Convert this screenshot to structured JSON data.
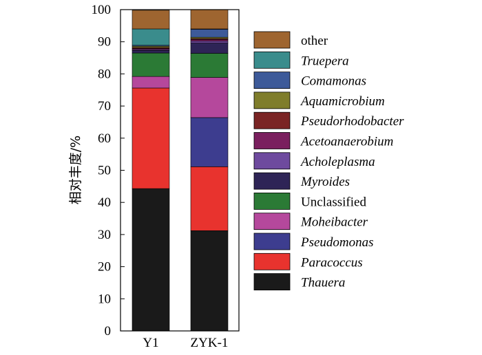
{
  "chart_data": {
    "type": "bar",
    "stacked": true,
    "title": "",
    "xlabel": "",
    "ylabel": "相对丰度/%",
    "ylim": [
      0,
      100
    ],
    "yticks": [
      0,
      10,
      20,
      30,
      40,
      50,
      60,
      70,
      80,
      90,
      100
    ],
    "grid": false,
    "legend_position": "right",
    "categories": [
      "Y1",
      "ZYK-1"
    ],
    "series": [
      {
        "name": "Thauera",
        "italic": true,
        "color": "#1a1a1a",
        "values": [
          44.3,
          31.2
        ]
      },
      {
        "name": "Paracoccus",
        "italic": true,
        "color": "#e8332e",
        "values": [
          31.3,
          19.9
        ]
      },
      {
        "name": "Pseudomonas",
        "italic": true,
        "color": "#3d3d8f",
        "values": [
          0.0,
          15.3
        ]
      },
      {
        "name": "Moheibacter",
        "italic": true,
        "color": "#b5489c",
        "values": [
          3.6,
          12.5
        ]
      },
      {
        "name": "Unclassified",
        "italic": false,
        "color": "#2b7a35",
        "values": [
          7.3,
          7.5
        ]
      },
      {
        "name": "Myroides",
        "italic": true,
        "color": "#2e2456",
        "values": [
          0.8,
          3.2
        ]
      },
      {
        "name": "Acholeplasma",
        "italic": true,
        "color": "#6e4a9e",
        "values": [
          0.3,
          0.6
        ]
      },
      {
        "name": "Acetoanaerobium",
        "italic": true,
        "color": "#7a1f5e",
        "values": [
          0.3,
          0.5
        ]
      },
      {
        "name": "Pseudorhodobacter",
        "italic": true,
        "color": "#7a2424",
        "values": [
          0.3,
          0.3
        ]
      },
      {
        "name": "Aquamicrobium",
        "italic": true,
        "color": "#7f7d2b",
        "values": [
          0.4,
          0.4
        ]
      },
      {
        "name": "Comamonas",
        "italic": true,
        "color": "#3d5a99",
        "values": [
          0.3,
          2.5
        ]
      },
      {
        "name": "Truepera",
        "italic": true,
        "color": "#3a8c8c",
        "values": [
          5.1,
          0.1
        ]
      },
      {
        "name": "other",
        "italic": false,
        "color": "#9e6530",
        "values": [
          5.8,
          6.0
        ]
      }
    ]
  }
}
